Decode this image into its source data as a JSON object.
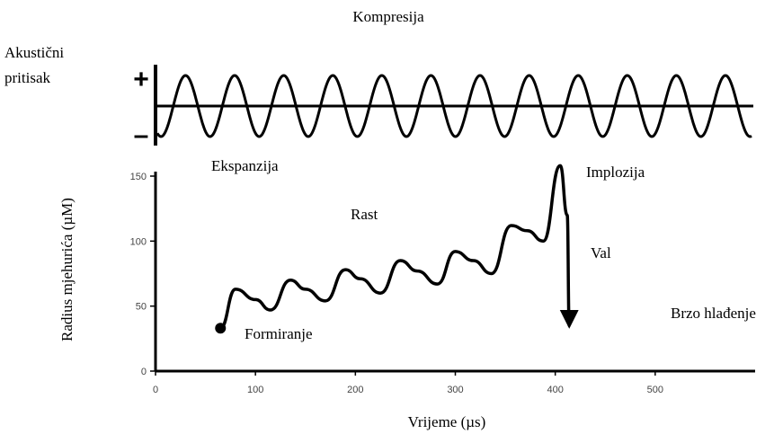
{
  "chart_data": {
    "type": "line",
    "xlabel": "Vrijeme (µs)",
    "ylabel": "Radius  mjehurića (µM)",
    "annotations": [
      "Kompresija",
      "Akustični",
      "pritisak",
      "+",
      "–",
      "Ekspanzija",
      "Rast",
      "Implozija",
      "Val",
      "Brzo hlađenje",
      "Formiranje"
    ],
    "x": [
      65,
      80,
      100,
      115,
      135,
      150,
      170,
      190,
      205,
      225,
      245,
      262,
      282,
      300,
      318,
      336,
      356,
      372,
      388,
      405,
      412,
      414
    ],
    "series": [
      {
        "color": "#000000",
        "values": [
          33,
          63,
          55,
          47,
          70,
          63,
          54,
          78,
          71,
          60,
          85,
          77,
          67,
          92,
          85,
          75,
          112,
          108,
          100,
          158,
          120,
          35
        ]
      }
    ],
    "xlim": [
      0,
      600
    ],
    "ylim": [
      0,
      150
    ],
    "xticks": [
      0,
      100,
      200,
      300,
      400,
      500
    ],
    "yticks": [
      0,
      50,
      100,
      150
    ]
  }
}
